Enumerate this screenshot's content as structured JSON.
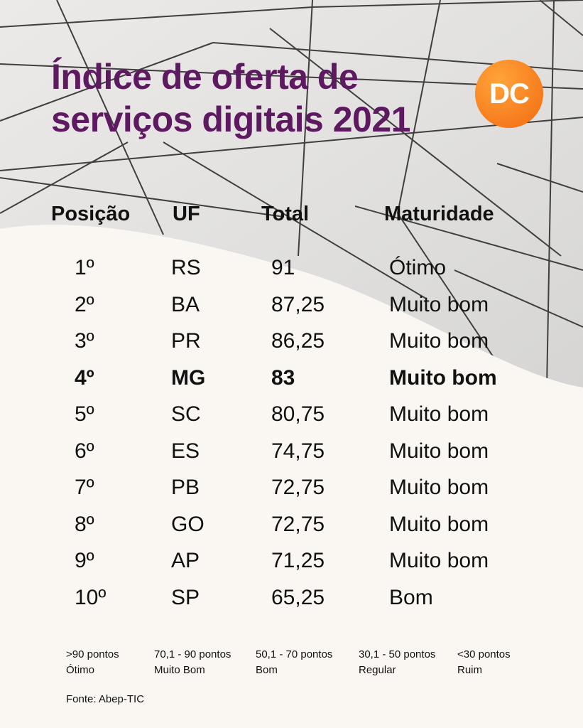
{
  "title_lines": [
    "Índice de oferta de",
    "serviços digitais 2021"
  ],
  "logo_text": "DC",
  "colors": {
    "title": "#5e1a60",
    "logo_light": "#ffa43a",
    "logo_dark": "#f26a10",
    "background": "#faf7f3",
    "ceiling": "#e4e3e1"
  },
  "chart_data": {
    "type": "table",
    "columns": [
      "Posição",
      "UF",
      "Total",
      "Maturidade"
    ],
    "rows": [
      {
        "pos": "1º",
        "uf": "RS",
        "total": "91",
        "maturity": "Ótimo",
        "highlight": false
      },
      {
        "pos": "2º",
        "uf": "BA",
        "total": "87,25",
        "maturity": "Muito bom",
        "highlight": false
      },
      {
        "pos": "3º",
        "uf": "PR",
        "total": "86,25",
        "maturity": "Muito bom",
        "highlight": false
      },
      {
        "pos": "4º",
        "uf": "MG",
        "total": "83",
        "maturity": "Muito bom",
        "highlight": true
      },
      {
        "pos": "5º",
        "uf": "SC",
        "total": "80,75",
        "maturity": "Muito bom",
        "highlight": false
      },
      {
        "pos": "6º",
        "uf": "ES",
        "total": "74,75",
        "maturity": "Muito bom",
        "highlight": false
      },
      {
        "pos": "7º",
        "uf": "PB",
        "total": "72,75",
        "maturity": "Muito bom",
        "highlight": false
      },
      {
        "pos": "8º",
        "uf": "GO",
        "total": "72,75",
        "maturity": "Muito bom",
        "highlight": false
      },
      {
        "pos": "9º",
        "uf": "AP",
        "total": "71,25",
        "maturity": "Muito bom",
        "highlight": false
      },
      {
        "pos": "10º",
        "uf": "SP",
        "total": "65,25",
        "maturity": "Bom",
        "highlight": false
      }
    ]
  },
  "legend": [
    {
      "range": ">90 pontos",
      "label": "Ótimo"
    },
    {
      "range": "70,1 - 90 pontos",
      "label": "Muito Bom"
    },
    {
      "range": "50,1 - 70 pontos",
      "label": "Bom"
    },
    {
      "range": "30,1 - 50 pontos",
      "label": "Regular"
    },
    {
      "range": "<30 pontos",
      "label": "Ruim"
    }
  ],
  "source": "Fonte: Abep-TIC"
}
